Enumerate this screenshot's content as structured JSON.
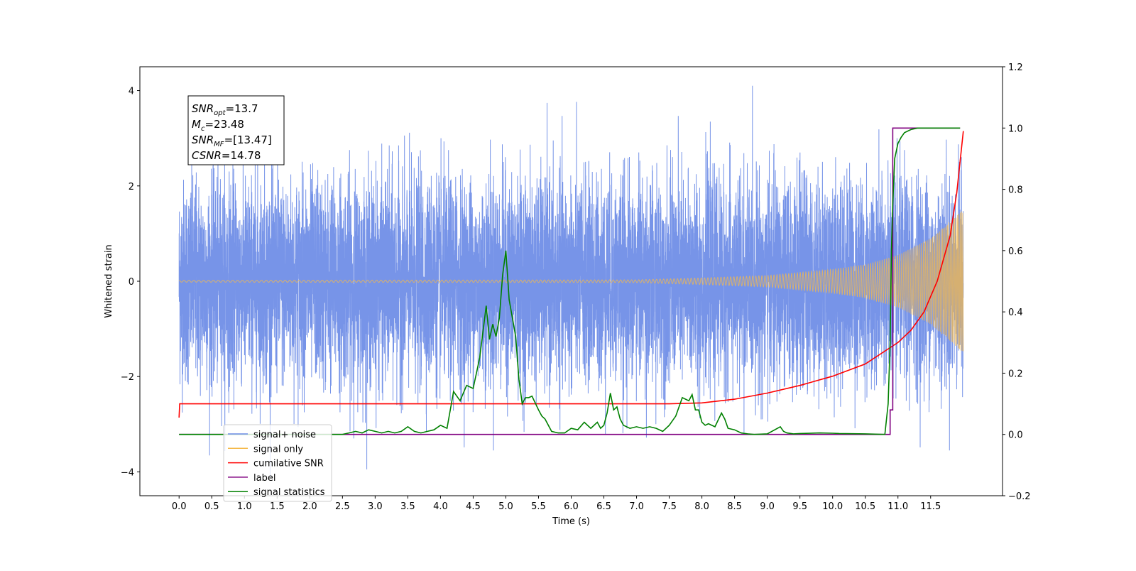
{
  "chart_data": {
    "type": "line",
    "xlabel": "Time (s)",
    "ylabel": "Whitened strain",
    "xlim": [
      -0.6,
      12.6
    ],
    "ylim": [
      -4.5,
      4.5
    ],
    "y2lim": [
      -0.2,
      1.2
    ],
    "x_ticks": [
      0.0,
      0.5,
      1.0,
      1.5,
      2.0,
      2.5,
      3.0,
      3.5,
      4.0,
      4.5,
      5.0,
      5.5,
      6.0,
      6.5,
      7.0,
      7.5,
      8.0,
      8.5,
      9.0,
      9.5,
      10.0,
      10.5,
      11.0,
      11.5
    ],
    "x_tick_labels": [
      "0.0",
      "0.5",
      "1.0",
      "1.5",
      "2.0",
      "2.5",
      "3.0",
      "3.5",
      "4.0",
      "4.5",
      "5.0",
      "5.5",
      "6.0",
      "6.5",
      "7.0",
      "7.5",
      "8.0",
      "8.5",
      "9.0",
      "9.5",
      "10.0",
      "10.5",
      "11.0",
      "11.5"
    ],
    "y_ticks": [
      -4,
      -2,
      0,
      2,
      4
    ],
    "y_tick_labels": [
      "−4",
      "−2",
      "0",
      "2",
      "4"
    ],
    "y2_ticks": [
      -0.2,
      0.0,
      0.2,
      0.4,
      0.6,
      0.8,
      1.0,
      1.2
    ],
    "y2_tick_labels": [
      "−0.2",
      "0.0",
      "0.2",
      "0.4",
      "0.6",
      "0.8",
      "1.0",
      "1.2"
    ],
    "grid": false,
    "legend_position": "lower-left",
    "legend": [
      {
        "label": "signal+ noise",
        "color": "#6b8be6"
      },
      {
        "label": "signal only",
        "color": "#f5b94a"
      },
      {
        "label": "cumilative SNR",
        "color": "#ff0000"
      },
      {
        "label": "label",
        "color": "#800080"
      },
      {
        "label": "signal statistics",
        "color": "#008000"
      }
    ],
    "annotation_lines": [
      {
        "base": "SNR",
        "sub": "opt",
        "rest": "=13.7"
      },
      {
        "base": "M",
        "sub": "c",
        "rest": "=23.48"
      },
      {
        "base": "SNR",
        "sub": "MF",
        "rest": "=[13.47]"
      },
      {
        "base": "CSNR",
        "sub": "",
        "rest": "=14.78"
      }
    ],
    "series": [
      {
        "name": "signal+ noise",
        "color": "#6b8be6",
        "axis": "left",
        "x_range": [
          0.0,
          12.0
        ],
        "std": 1.05,
        "peak_max": 4.1,
        "peak_min": -4.1
      },
      {
        "name": "signal only",
        "color": "#f5b94a",
        "axis": "left",
        "x_range": [
          0.0,
          12.0
        ],
        "envelope": [
          [
            0.0,
            0.02
          ],
          [
            7.0,
            0.03
          ],
          [
            8.0,
            0.07
          ],
          [
            9.0,
            0.12
          ],
          [
            10.0,
            0.25
          ],
          [
            10.5,
            0.35
          ],
          [
            11.0,
            0.55
          ],
          [
            11.5,
            0.9
          ],
          [
            12.0,
            1.5
          ]
        ]
      },
      {
        "name": "cumilative SNR",
        "color": "#ff0000",
        "axis": "right",
        "x": [
          0.0,
          0.01,
          0.5,
          2.0,
          4.0,
          6.0,
          7.5,
          8.0,
          8.5,
          9.0,
          9.5,
          10.0,
          10.5,
          11.0,
          11.2,
          11.4,
          11.6,
          11.8,
          11.9,
          12.0
        ],
        "y": [
          0.055,
          0.1,
          0.1,
          0.1,
          0.1,
          0.1,
          0.1,
          0.103,
          0.115,
          0.135,
          0.16,
          0.19,
          0.23,
          0.3,
          0.34,
          0.4,
          0.5,
          0.65,
          0.79,
          0.99
        ]
      },
      {
        "name": "label",
        "color": "#800080",
        "axis": "right",
        "x": [
          0.0,
          10.88,
          10.88,
          10.92,
          10.92,
          11.95
        ],
        "y": [
          0.0,
          0.0,
          0.08,
          0.08,
          1.0,
          1.0
        ]
      },
      {
        "name": "signal statistics",
        "color": "#008000",
        "axis": "right",
        "x": [
          0.0,
          2.5,
          2.6,
          2.7,
          2.8,
          2.9,
          3.0,
          3.1,
          3.2,
          3.3,
          3.4,
          3.5,
          3.6,
          3.7,
          3.8,
          3.9,
          4.0,
          4.1,
          4.2,
          4.3,
          4.4,
          4.5,
          4.6,
          4.7,
          4.75,
          4.8,
          4.85,
          4.9,
          4.95,
          5.0,
          5.05,
          5.1,
          5.15,
          5.2,
          5.25,
          5.3,
          5.35,
          5.4,
          5.5,
          5.55,
          5.6,
          5.7,
          5.8,
          5.9,
          6.0,
          6.1,
          6.2,
          6.3,
          6.4,
          6.45,
          6.5,
          6.55,
          6.6,
          6.65,
          6.7,
          6.75,
          6.8,
          6.9,
          7.0,
          7.1,
          7.2,
          7.3,
          7.4,
          7.5,
          7.6,
          7.7,
          7.8,
          7.85,
          7.9,
          7.95,
          8.0,
          8.05,
          8.1,
          8.2,
          8.3,
          8.35,
          8.4,
          8.5,
          8.6,
          8.7,
          8.8,
          9.0,
          9.2,
          9.25,
          9.3,
          9.4,
          9.5,
          9.8,
          10.0,
          10.1,
          10.5,
          10.8,
          10.85,
          10.88,
          10.9,
          10.92,
          10.95,
          11.0,
          11.05,
          11.1,
          11.2,
          11.3,
          11.5,
          11.95
        ],
        "y": [
          0.0,
          0.0,
          0.005,
          0.01,
          0.005,
          0.015,
          0.01,
          0.005,
          0.01,
          0.005,
          0.01,
          0.025,
          0.01,
          0.005,
          0.01,
          0.015,
          0.03,
          0.02,
          0.14,
          0.11,
          0.16,
          0.15,
          0.25,
          0.42,
          0.31,
          0.36,
          0.32,
          0.38,
          0.52,
          0.6,
          0.44,
          0.38,
          0.32,
          0.18,
          0.1,
          0.12,
          0.12,
          0.125,
          0.08,
          0.06,
          0.05,
          0.01,
          0.005,
          0.005,
          0.02,
          0.015,
          0.04,
          0.02,
          0.04,
          0.02,
          0.03,
          0.07,
          0.135,
          0.08,
          0.09,
          0.05,
          0.03,
          0.02,
          0.025,
          0.02,
          0.025,
          0.02,
          0.01,
          0.03,
          0.06,
          0.12,
          0.11,
          0.13,
          0.08,
          0.08,
          0.04,
          0.03,
          0.035,
          0.025,
          0.07,
          0.05,
          0.02,
          0.015,
          0.005,
          0.002,
          0.0,
          0.002,
          0.025,
          0.01,
          0.005,
          0.002,
          0.003,
          0.005,
          0.004,
          0.003,
          0.002,
          0.0,
          0.1,
          0.3,
          0.6,
          0.75,
          0.9,
          0.95,
          0.97,
          0.985,
          0.995,
          1.0,
          1.0,
          1.0
        ]
      }
    ]
  }
}
